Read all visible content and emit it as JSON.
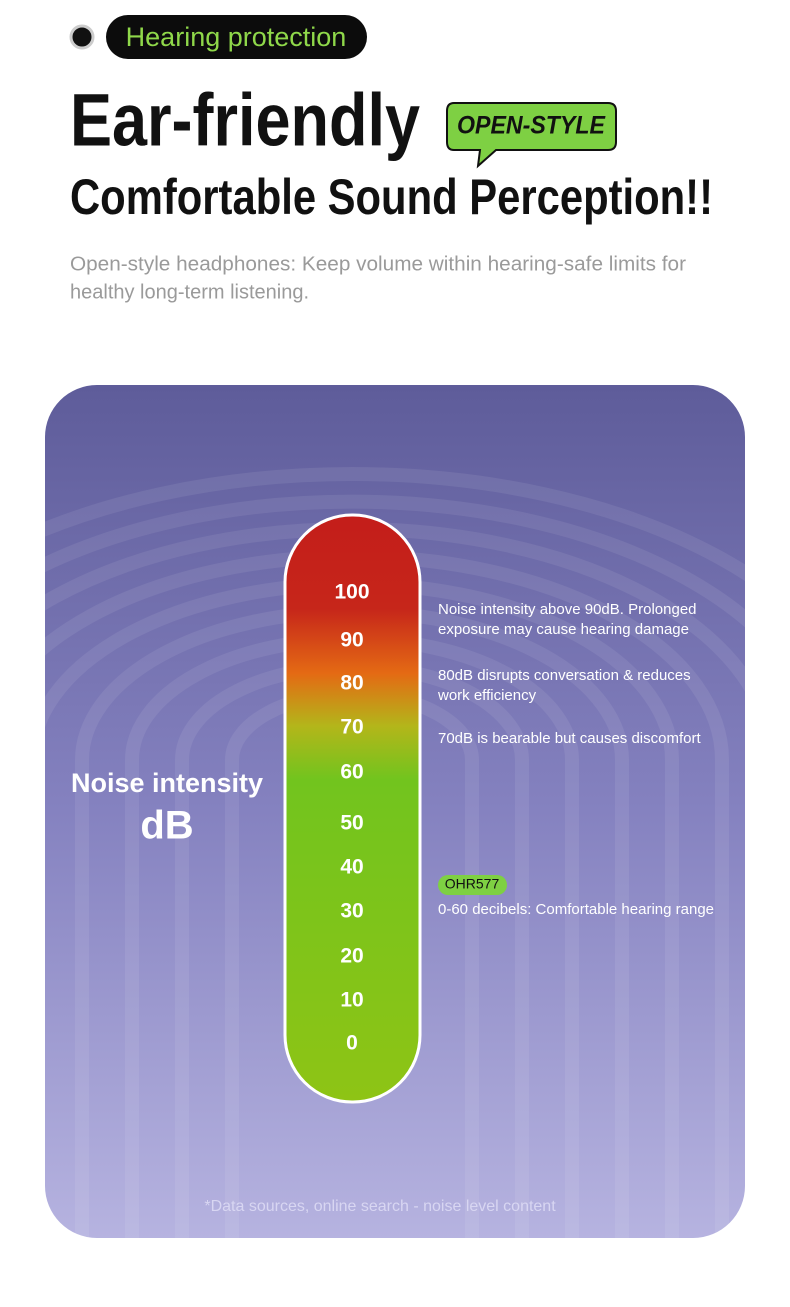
{
  "header": {
    "tag": "Hearing protection",
    "title": "Ear-friendly",
    "badge": "OPEN-STYLE",
    "subtitle": "Comfortable Sound Perception!!",
    "description": [
      "Open-style headphones: Keep volume within hearing-safe limits for",
      "healthy long-term listening."
    ]
  },
  "meter": {
    "axis_label": "Noise intensity",
    "unit": "dB",
    "scale": [
      100,
      90,
      80,
      70,
      60,
      50,
      40,
      30,
      20,
      10,
      0
    ],
    "notes": [
      {
        "lines": [
          "Noise intensity above 90dB. Prolonged",
          "exposure may cause hearing damage"
        ]
      },
      {
        "lines": [
          "80dB disrupts conversation & reduces",
          "work efficiency"
        ]
      },
      {
        "lines": [
          "70dB is bearable but causes discomfort"
        ]
      }
    ],
    "product": "OHR577",
    "comfort_note": "0-60 decibels: Comfortable hearing range"
  },
  "footnote": "*Data sources, online search - noise level content"
}
